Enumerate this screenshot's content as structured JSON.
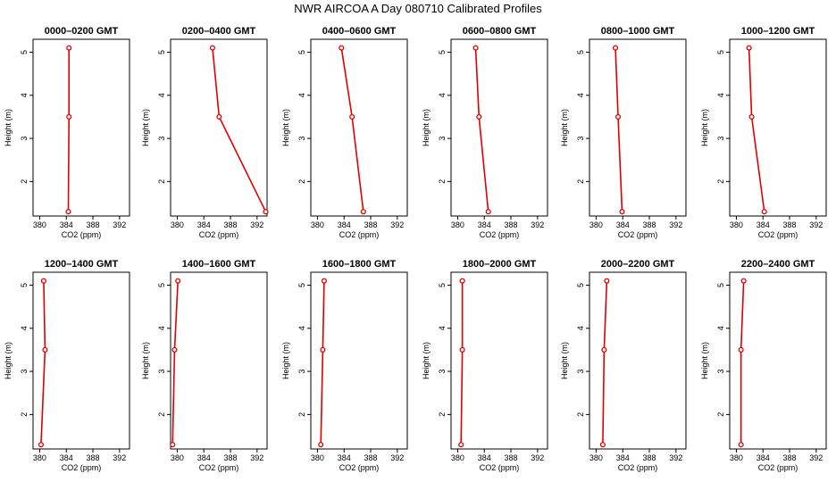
{
  "page_title": "NWR AIRCOA A  Day 080710  Calibrated Profiles",
  "chart_data": [
    {
      "type": "line",
      "title": "0000–0200 GMT",
      "xlabel": "CO2 (ppm)",
      "ylabel": "Height (m)",
      "xlim": [
        379,
        393.5
      ],
      "ylim": [
        1.2,
        5.3
      ],
      "x_ticks": [
        380,
        384,
        388,
        392
      ],
      "y_ticks": [
        2,
        3,
        4,
        5
      ],
      "series": [
        {
          "x": [
            384.3,
            384.4,
            384.4
          ],
          "y": [
            1.3,
            3.5,
            5.1
          ]
        }
      ]
    },
    {
      "type": "line",
      "title": "0200–0400 GMT",
      "xlabel": "CO2 (ppm)",
      "ylabel": "Height (m)",
      "xlim": [
        379,
        393.5
      ],
      "ylim": [
        1.2,
        5.3
      ],
      "x_ticks": [
        380,
        384,
        388,
        392
      ],
      "y_ticks": [
        2,
        3,
        4,
        5
      ],
      "series": [
        {
          "x": [
            393.3,
            386.3,
            385.3
          ],
          "y": [
            1.3,
            3.5,
            5.1
          ]
        }
      ]
    },
    {
      "type": "line",
      "title": "0400–0600 GMT",
      "xlabel": "CO2 (ppm)",
      "ylabel": "Height (m)",
      "xlim": [
        379,
        393.5
      ],
      "ylim": [
        1.2,
        5.3
      ],
      "x_ticks": [
        380,
        384,
        388,
        392
      ],
      "y_ticks": [
        2,
        3,
        4,
        5
      ],
      "series": [
        {
          "x": [
            386.9,
            385.2,
            383.6
          ],
          "y": [
            1.3,
            3.5,
            5.1
          ]
        }
      ]
    },
    {
      "type": "line",
      "title": "0600–0800 GMT",
      "xlabel": "CO2 (ppm)",
      "ylabel": "Height (m)",
      "xlim": [
        379,
        393.5
      ],
      "ylim": [
        1.2,
        5.3
      ],
      "x_ticks": [
        380,
        384,
        388,
        392
      ],
      "y_ticks": [
        2,
        3,
        4,
        5
      ],
      "series": [
        {
          "x": [
            384.6,
            383.2,
            382.7
          ],
          "y": [
            1.3,
            3.5,
            5.1
          ]
        }
      ]
    },
    {
      "type": "line",
      "title": "0800–1000 GMT",
      "xlabel": "CO2 (ppm)",
      "ylabel": "Height (m)",
      "xlim": [
        379,
        393.5
      ],
      "ylim": [
        1.2,
        5.3
      ],
      "x_ticks": [
        380,
        384,
        388,
        392
      ],
      "y_ticks": [
        2,
        3,
        4,
        5
      ],
      "series": [
        {
          "x": [
            383.9,
            383.3,
            382.9
          ],
          "y": [
            1.3,
            3.5,
            5.1
          ]
        }
      ]
    },
    {
      "type": "line",
      "title": "1000–1200 GMT",
      "xlabel": "CO2 (ppm)",
      "ylabel": "Height (m)",
      "xlim": [
        379,
        393.5
      ],
      "ylim": [
        1.2,
        5.3
      ],
      "x_ticks": [
        380,
        384,
        388,
        392
      ],
      "y_ticks": [
        2,
        3,
        4,
        5
      ],
      "series": [
        {
          "x": [
            384.2,
            382.3,
            381.9
          ],
          "y": [
            1.3,
            3.5,
            5.1
          ]
        }
      ]
    },
    {
      "type": "line",
      "title": "1200–1400 GMT",
      "xlabel": "CO2 (ppm)",
      "ylabel": "Height (m)",
      "xlim": [
        379,
        393.5
      ],
      "ylim": [
        1.2,
        5.3
      ],
      "x_ticks": [
        380,
        384,
        388,
        392
      ],
      "y_ticks": [
        2,
        3,
        4,
        5
      ],
      "series": [
        {
          "x": [
            380.2,
            380.8,
            380.6
          ],
          "y": [
            1.3,
            3.5,
            5.1
          ]
        }
      ]
    },
    {
      "type": "line",
      "title": "1400–1600 GMT",
      "xlabel": "CO2 (ppm)",
      "ylabel": "Height (m)",
      "xlim": [
        379,
        393.5
      ],
      "ylim": [
        1.2,
        5.3
      ],
      "x_ticks": [
        380,
        384,
        388,
        392
      ],
      "y_ticks": [
        2,
        3,
        4,
        5
      ],
      "series": [
        {
          "x": [
            379.3,
            379.6,
            380.1
          ],
          "y": [
            1.3,
            3.5,
            5.1
          ]
        }
      ]
    },
    {
      "type": "line",
      "title": "1600–1800 GMT",
      "xlabel": "CO2 (ppm)",
      "ylabel": "Height (m)",
      "xlim": [
        379,
        393.5
      ],
      "ylim": [
        1.2,
        5.3
      ],
      "x_ticks": [
        380,
        384,
        388,
        392
      ],
      "y_ticks": [
        2,
        3,
        4,
        5
      ],
      "series": [
        {
          "x": [
            380.5,
            380.8,
            381.0
          ],
          "y": [
            1.3,
            3.5,
            5.1
          ]
        }
      ]
    },
    {
      "type": "line",
      "title": "1800–2000 GMT",
      "xlabel": "CO2 (ppm)",
      "ylabel": "Height (m)",
      "xlim": [
        379,
        393.5
      ],
      "ylim": [
        1.2,
        5.3
      ],
      "x_ticks": [
        380,
        384,
        388,
        392
      ],
      "y_ticks": [
        2,
        3,
        4,
        5
      ],
      "series": [
        {
          "x": [
            380.5,
            380.7,
            380.7
          ],
          "y": [
            1.3,
            3.5,
            5.1
          ]
        }
      ]
    },
    {
      "type": "line",
      "title": "2000–2200 GMT",
      "xlabel": "CO2 (ppm)",
      "ylabel": "Height (m)",
      "xlim": [
        379,
        393.5
      ],
      "ylim": [
        1.2,
        5.3
      ],
      "x_ticks": [
        380,
        384,
        388,
        392
      ],
      "y_ticks": [
        2,
        3,
        4,
        5
      ],
      "series": [
        {
          "x": [
            381.0,
            381.2,
            381.6
          ],
          "y": [
            1.3,
            3.5,
            5.1
          ]
        }
      ]
    },
    {
      "type": "line",
      "title": "2200–2400 GMT",
      "xlabel": "CO2 (ppm)",
      "ylabel": "Height (m)",
      "xlim": [
        379,
        393.5
      ],
      "ylim": [
        1.2,
        5.3
      ],
      "x_ticks": [
        380,
        384,
        388,
        392
      ],
      "y_ticks": [
        2,
        3,
        4,
        5
      ],
      "series": [
        {
          "x": [
            380.7,
            380.7,
            381.1
          ],
          "y": [
            1.3,
            3.5,
            5.1
          ]
        }
      ]
    }
  ],
  "colors": {
    "series": "#e00000",
    "axis": "#000000",
    "background": "#ffffff"
  }
}
